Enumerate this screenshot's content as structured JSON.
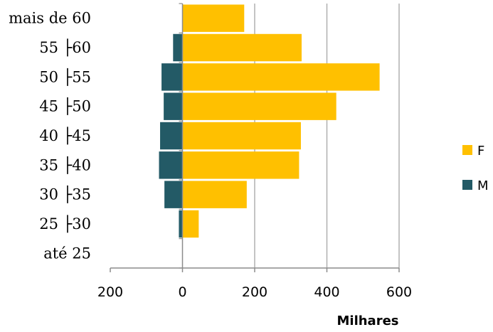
{
  "chart_data": {
    "type": "bar",
    "orientation": "horizontal",
    "categories": [
      "até 25",
      "25 ├30",
      "30 ├35",
      "35 ├40",
      "40 ├45",
      "45 ├50",
      "50 ├55",
      "55 ├60",
      "mais de 60"
    ],
    "series": [
      {
        "name": "M",
        "color": "#235a66",
        "values": [
          0,
          10,
          50,
          65,
          62,
          52,
          58,
          26,
          0
        ]
      },
      {
        "name": "F",
        "color": "#ffc000",
        "values": [
          0,
          45,
          178,
          323,
          328,
          426,
          546,
          330,
          171
        ]
      }
    ],
    "xlabel": "Milhares",
    "x_ticks": [
      {
        "value": -200,
        "label": "200"
      },
      {
        "value": 0,
        "label": "0"
      },
      {
        "value": 200,
        "label": "200"
      },
      {
        "value": 400,
        "label": "400"
      },
      {
        "value": 600,
        "label": "600"
      }
    ],
    "xlim": [
      -200,
      600
    ],
    "grid": true,
    "legend": {
      "position": "right",
      "order": [
        "F",
        "M"
      ]
    }
  }
}
